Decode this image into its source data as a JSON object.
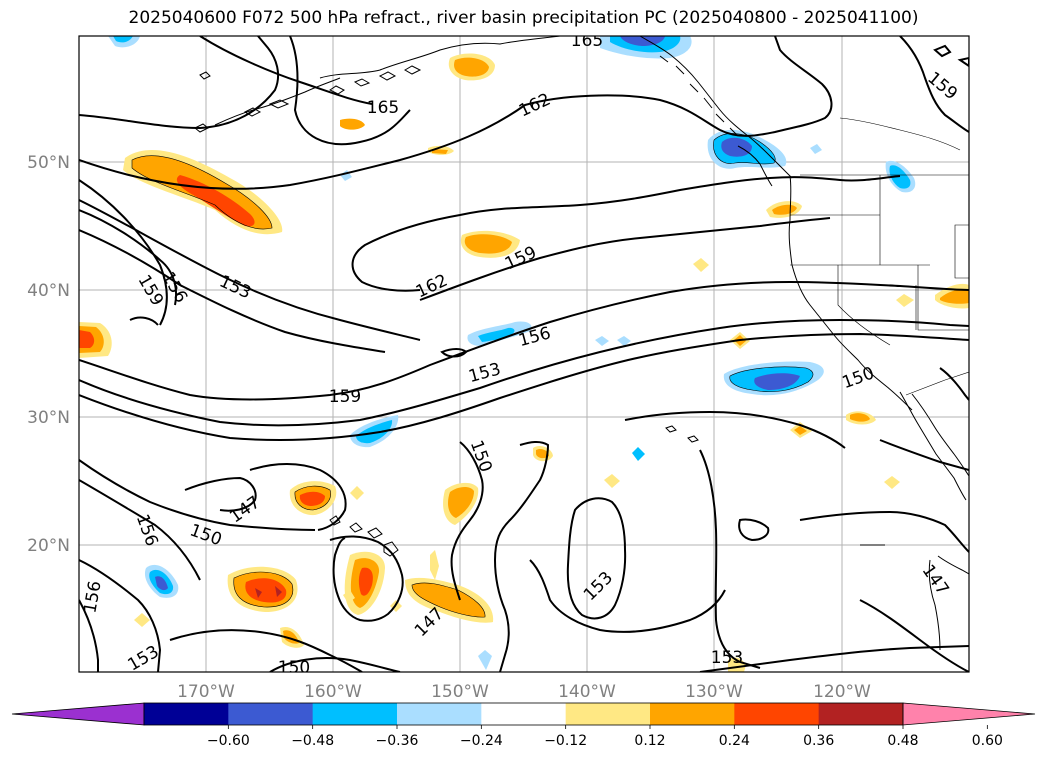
{
  "title": "2025040600 F072 500 hPa refract., river basin precipitation PC (2025040800 - 2025041100)",
  "map": {
    "lat_labels": [
      "50°N",
      "40°N",
      "30°N",
      "20°N"
    ],
    "lon_labels": [
      "170°W",
      "160°W",
      "150°W",
      "140°W",
      "130°W",
      "120°W"
    ],
    "contour_labels": [
      "165",
      "162",
      "159",
      "162",
      "159",
      "153",
      "156",
      "159",
      "156",
      "159",
      "153",
      "156",
      "150",
      "147",
      "150",
      "156",
      "156",
      "153",
      "150",
      "147",
      "153",
      "153",
      "147",
      "150",
      "159",
      "165"
    ]
  },
  "colorbar": {
    "tick_labels": [
      "−0.60",
      "−0.48",
      "−0.36",
      "−0.24",
      "−0.12",
      "0.12",
      "0.24",
      "0.36",
      "0.48",
      "0.60"
    ],
    "colors": [
      "#9b30d0",
      "#000096",
      "#3c5ad2",
      "#00bfff",
      "#aadeff",
      "#ffffff",
      "#ffe884",
      "#ffa500",
      "#ff4500",
      "#b22222",
      "#ff82ab"
    ]
  }
}
